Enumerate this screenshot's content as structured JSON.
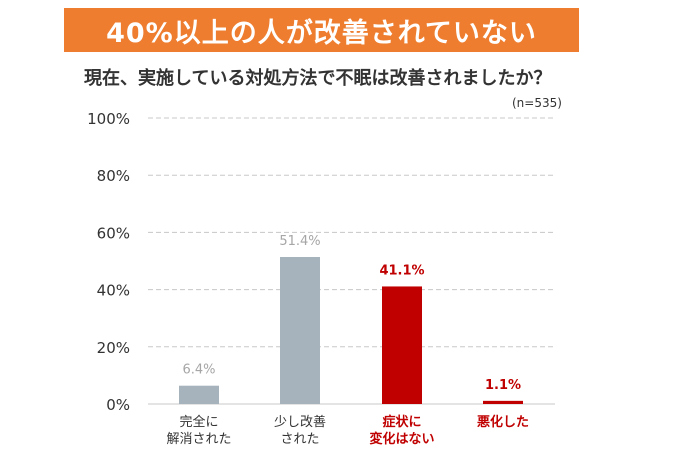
{
  "header": {
    "banner": "40%以上の人が改善されていない",
    "question": "現在、実施している対処方法で不眠は改善されましたか？",
    "sample_size": "(n=535)"
  },
  "colors": {
    "banner_bg": "#ee7d2f",
    "gray_bar": "#a6b3bd",
    "red_bar": "#c00000",
    "gray_label": "#a6a6a6",
    "red_label": "#c00000",
    "grid": "#c8c8c8"
  },
  "chart_data": {
    "type": "bar",
    "categories": [
      [
        "完全に",
        "解消された"
      ],
      [
        "少し改善",
        "された"
      ],
      [
        "症状に",
        "変化はない"
      ],
      [
        "悪化した"
      ]
    ],
    "values": [
      6.4,
      51.4,
      41.1,
      1.1
    ],
    "value_labels": [
      "6.4%",
      "51.4%",
      "41.1%",
      "1.1%"
    ],
    "highlight": [
      false,
      false,
      true,
      true
    ],
    "yticks": [
      "0%",
      "20%",
      "40%",
      "60%",
      "80%",
      "100%"
    ],
    "ylim": [
      0,
      100
    ],
    "grid": true
  }
}
